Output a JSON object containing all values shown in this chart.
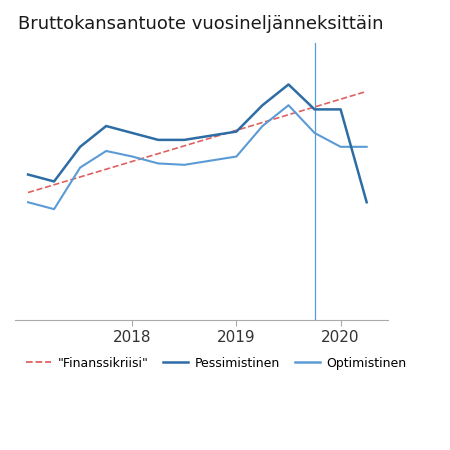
{
  "title": "Bruttokansantuote vuosineljänneksittäin",
  "title_fontsize": 13,
  "background_color": "#ffffff",
  "grid_color": "#c8d4e0",
  "x_tick_labels": [
    "2018",
    "2019",
    "2020"
  ],
  "x_tick_positions": [
    4,
    8,
    12
  ],
  "vertical_line_x": 11.0,
  "pessimistinen": {
    "x": [
      0,
      1,
      2,
      3,
      4,
      5,
      6,
      7,
      8,
      9,
      10,
      11,
      12,
      13
    ],
    "y": [
      96.5,
      96.0,
      98.5,
      100.0,
      99.5,
      99.0,
      99.0,
      99.3,
      99.6,
      101.5,
      103.0,
      101.2,
      101.2,
      94.5
    ],
    "color": "#2e6da4",
    "linewidth": 1.8
  },
  "optimistinen": {
    "x": [
      0,
      1,
      2,
      3,
      4,
      5,
      6,
      7,
      8,
      9,
      10,
      11,
      12,
      13
    ],
    "y": [
      94.5,
      94.0,
      97.0,
      98.2,
      97.8,
      97.3,
      97.2,
      97.5,
      97.8,
      100.0,
      101.5,
      99.5,
      98.5,
      98.5
    ],
    "color": "#5b9bd5",
    "linewidth": 1.5
  },
  "finanssikriisi": {
    "x": [
      0,
      13
    ],
    "y": [
      95.2,
      102.5
    ],
    "color": "#e06060",
    "linewidth": 1.2,
    "linestyle": "--"
  },
  "ylim_min": 86,
  "ylim_max": 106,
  "legend": {
    "finanssikriisi_label": "\"Finanssikriisi\"",
    "pessimistinen_label": "Pessimistinen",
    "optimistinen_label": "Optimistinen"
  }
}
